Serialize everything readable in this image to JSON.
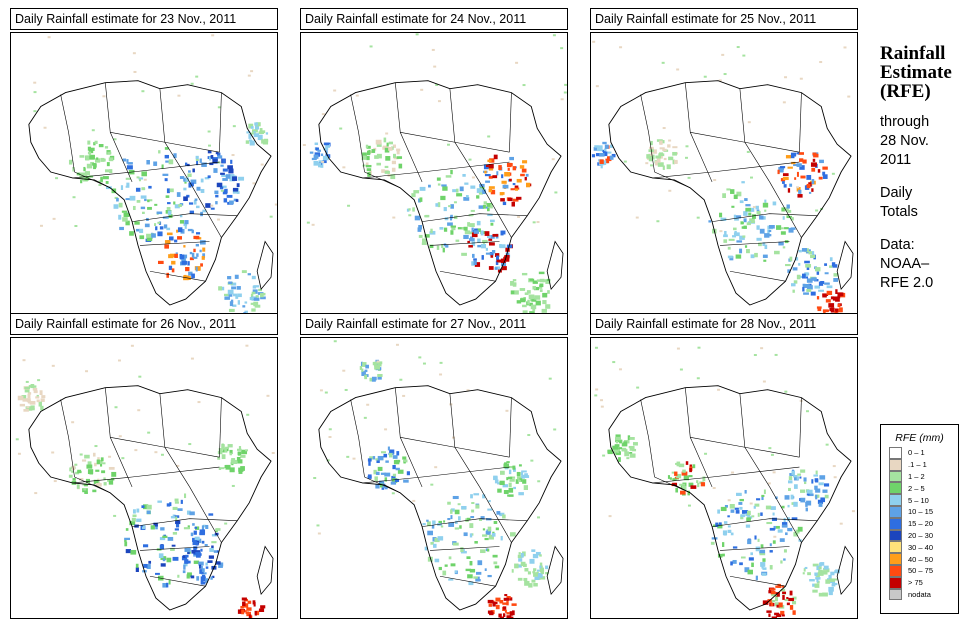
{
  "panels": [
    {
      "title": "Daily Rainfall estimate for  23 Nov., 2011"
    },
    {
      "title": "Daily Rainfall estimate for  24 Nov., 2011"
    },
    {
      "title": "Daily Rainfall estimate for  25 Nov., 2011"
    },
    {
      "title": "Daily Rainfall estimate for  26 Nov., 2011"
    },
    {
      "title": "Daily Rainfall estimate for  27 Nov., 2011"
    },
    {
      "title": "Daily Rainfall estimate for  28 Nov., 2011"
    }
  ],
  "sidebar": {
    "title_lines": [
      "Rainfall",
      "Estimate",
      "(RFE)"
    ],
    "through_lines": [
      "through",
      "28 Nov.",
      "2011"
    ],
    "totals_lines": [
      "Daily",
      "Totals"
    ],
    "data_lines": [
      "Data:",
      "NOAA–",
      "RFE 2.0"
    ]
  },
  "legend": {
    "title": "RFE (mm)",
    "items": [
      {
        "label": "0 – 1",
        "color": "#ffffff"
      },
      {
        "label": ".1 – 1",
        "color": "#e8d7c2"
      },
      {
        "label": "1 – 2",
        "color": "#a5e3a0"
      },
      {
        "label": "2 – 5",
        "color": "#6fd36a"
      },
      {
        "label": "5 – 10",
        "color": "#8fd0ee"
      },
      {
        "label": "10 – 15",
        "color": "#5ea2e6"
      },
      {
        "label": "15 – 20",
        "color": "#2e6ee0"
      },
      {
        "label": "20 – 30",
        "color": "#1c45bd"
      },
      {
        "label": "30 – 40",
        "color": "#ffe27a"
      },
      {
        "label": "40 – 50",
        "color": "#ff9e1a"
      },
      {
        "label": "50 – 75",
        "color": "#ff4a12"
      },
      {
        "label": "> 75",
        "color": "#c40000"
      },
      {
        "label": "nodata",
        "color": "#c8c8c8"
      }
    ]
  }
}
